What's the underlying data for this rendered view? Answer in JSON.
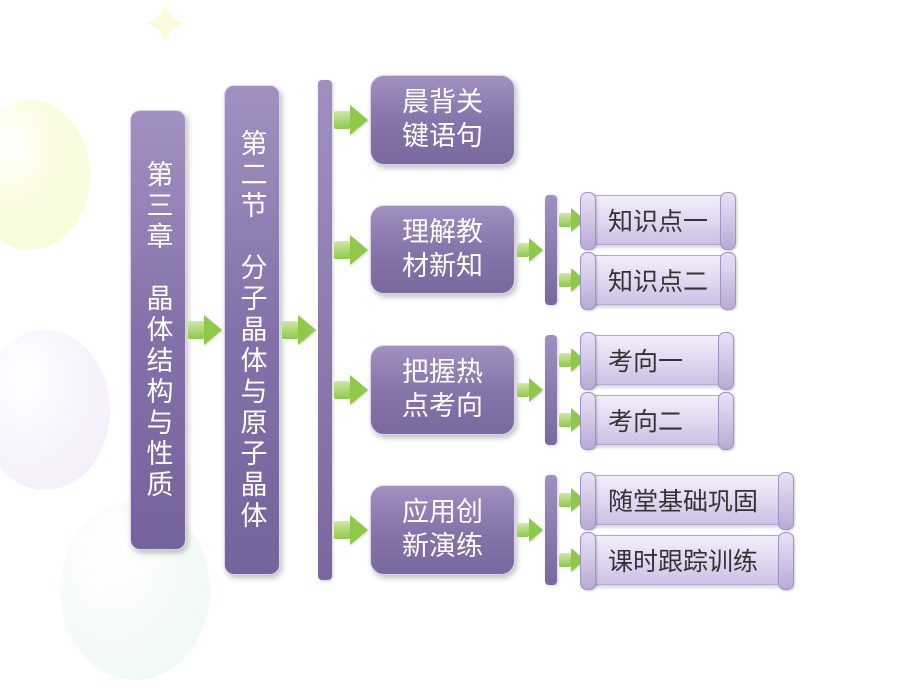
{
  "diagram": {
    "type": "tree",
    "background_decorations": [
      "yellow-balloon",
      "purple-balloon",
      "green-balloon",
      "spark"
    ],
    "colors": {
      "node_fill_top": "#a290c1",
      "node_fill_bottom": "#76639c",
      "node_border": "#dcd3eb",
      "node_text": "#ffffff",
      "arrow_fill": "#8fc94a",
      "arrow_highlight": "#cfe8a6",
      "leaf_fill_top": "#f3effa",
      "leaf_fill_bottom": "#cdc0e5",
      "leaf_border": "#b6a8d3",
      "leaf_text": "#333333",
      "pillar": "#7a679f"
    },
    "fonts": {
      "node_size_pt": 20,
      "leaf_size_pt": 19,
      "family": "SimSun"
    },
    "chapter": "第三章　晶体结构与性质",
    "section": "第二节　分子晶体与原子晶体",
    "topics": [
      {
        "label": "晨背关键语句",
        "children": []
      },
      {
        "label": "理解教材新知",
        "children": [
          "知识点一",
          "知识点二"
        ]
      },
      {
        "label": "把握热点考向",
        "children": [
          "考向一",
          "考向二"
        ]
      },
      {
        "label": "应用创新演练",
        "children": [
          "随堂基础巩固",
          "课时跟踪训练"
        ]
      }
    ]
  }
}
